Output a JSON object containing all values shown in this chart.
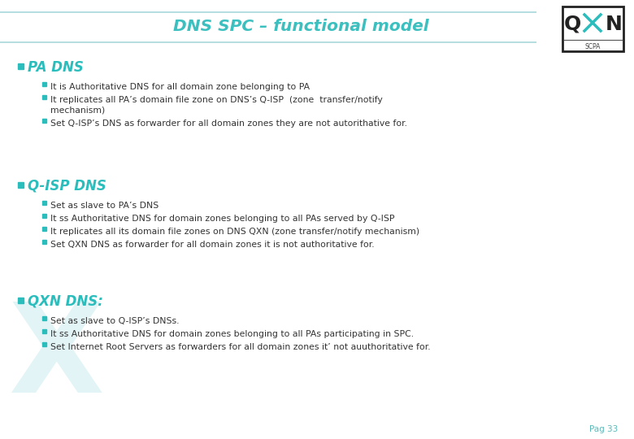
{
  "title": "DNS SPC – functional model",
  "title_color": "#3BBFBF",
  "bg_color": "#FFFFFF",
  "header_line_color": "#A8D8DC",
  "teal": "#2BBCBC",
  "dark_text": "#333333",
  "bullet_color": "#2BBCBC",
  "page_num": "Pag 33",
  "page_num_color": "#5ABABA",
  "sections": [
    {
      "heading": "PA DNS",
      "bullets": [
        "It is Authoritative DNS for all domain zone belonging to PA",
        "It replicates all PA’s domain file zone on DNS’s Q-ISP  (zone  transfer/notify\nmechanism)",
        "Set Q-ISP’s DNS as forwarder for all domain zones they are not autorithative for."
      ]
    },
    {
      "heading": "Q-ISP DNS",
      "bullets": [
        "Set as slave to PA’s DNS",
        "It ss Authoritative DNS for domain zones belonging to all PAs served by Q-ISP",
        "It replicates all its domain file zones on DNS QXN (zone transfer/notify mechanism)",
        "Set QXN DNS as forwarder for all domain zones it is not authoritative for."
      ]
    },
    {
      "heading": "QXN DNS:",
      "bullets": [
        "Set as slave to Q-ISP’s DNSs.",
        "It ss Authoritative DNS for domain zones belonging to all PAs participating in SPC.",
        "Set Internet Root Servers as forwarders for all domain zones it’ not auuthoritative for."
      ]
    }
  ]
}
